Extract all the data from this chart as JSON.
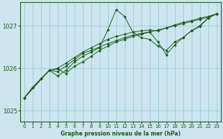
{
  "background_color": "#cce5ee",
  "plot_bg_color": "#cce5ee",
  "grid_color": "#99ccd9",
  "line_color": "#1a5c1a",
  "marker_color": "#1a5c1a",
  "xlabel": "Graphe pression niveau de la mer (hPa)",
  "ylim": [
    1024.75,
    1027.55
  ],
  "xlim": [
    -0.5,
    23.5
  ],
  "yticks": [
    1025,
    1026,
    1027
  ],
  "xticks": [
    0,
    1,
    2,
    3,
    4,
    5,
    6,
    7,
    8,
    9,
    10,
    11,
    12,
    13,
    14,
    15,
    16,
    17,
    18,
    19,
    20,
    21,
    22,
    23
  ],
  "series": [
    {
      "x": [
        0,
        1,
        2,
        3,
        4,
        5,
        6,
        7,
        8,
        9,
        10,
        11,
        12,
        13,
        14,
        15,
        16,
        17,
        18,
        19,
        20,
        21,
        22,
        23
      ],
      "y": [
        1025.3,
        1025.55,
        1025.75,
        1025.95,
        1025.98,
        1025.88,
        1026.05,
        1026.15,
        1026.28,
        1026.42,
        1026.52,
        1026.62,
        1026.68,
        1026.75,
        1026.8,
        1026.85,
        1026.9,
        1026.95,
        1027.0,
        1027.05,
        1027.1,
        1027.15,
        1027.2,
        1027.28
      ]
    },
    {
      "x": [
        0,
        1,
        2,
        3,
        4,
        5,
        6,
        7,
        8,
        9,
        10,
        11,
        12,
        13,
        14,
        15,
        16,
        17,
        18,
        19,
        20,
        21,
        22,
        23
      ],
      "y": [
        1025.3,
        1025.55,
        1025.75,
        1025.95,
        1025.82,
        1025.95,
        1026.15,
        1026.28,
        1026.38,
        1026.48,
        1026.9,
        1027.38,
        1027.22,
        1026.85,
        1026.72,
        1026.68,
        1026.52,
        1026.42,
        1026.62,
        1026.72,
        1026.88,
        1026.98,
        1027.18,
        1027.28
      ]
    },
    {
      "x": [
        0,
        3,
        4,
        5,
        6,
        7,
        8,
        9,
        10,
        11,
        12,
        13,
        14,
        15,
        16,
        17,
        18,
        19,
        20,
        21,
        22,
        23
      ],
      "y": [
        1025.3,
        1025.95,
        1025.92,
        1026.05,
        1026.2,
        1026.35,
        1026.42,
        1026.5,
        1026.58,
        1026.65,
        1026.72,
        1026.78,
        1026.82,
        1026.86,
        1026.62,
        1026.32,
        1026.55,
        1026.72,
        1026.88,
        1027.0,
        1027.18,
        1027.28
      ]
    },
    {
      "x": [
        0,
        2,
        3,
        4,
        5,
        6,
        7,
        8,
        9,
        10,
        11,
        12,
        13,
        14,
        15,
        16,
        17,
        18,
        19,
        20,
        21,
        22,
        23
      ],
      "y": [
        1025.3,
        1025.75,
        1025.95,
        1026.0,
        1026.12,
        1026.25,
        1026.38,
        1026.48,
        1026.58,
        1026.68,
        1026.75,
        1026.8,
        1026.85,
        1026.88,
        1026.9,
        1026.88,
        1026.95,
        1027.02,
        1027.08,
        1027.12,
        1027.18,
        1027.22,
        1027.28
      ]
    }
  ]
}
